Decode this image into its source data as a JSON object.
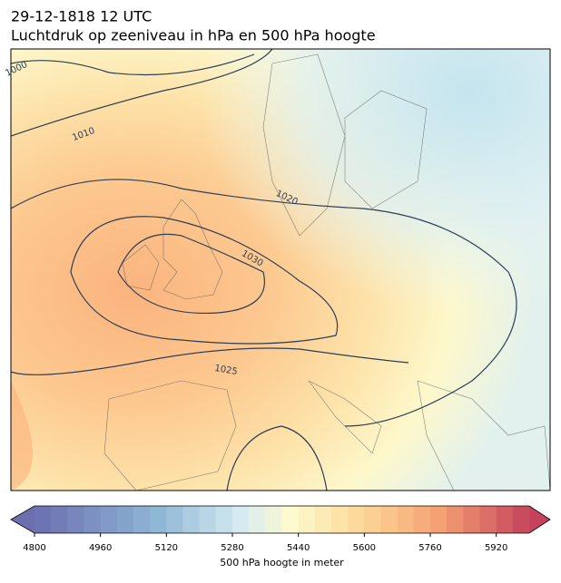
{
  "title": "29-12-1818 12 UTC",
  "subtitle": "Luchtdruk op zeeniveau in hPa en 500 hPa hoogte",
  "isobar_labels": [
    1000,
    1010,
    1020,
    1030,
    1025
  ],
  "colorbar": {
    "label": "500 hPa hoogte in meter",
    "lim": [
      4800,
      6000
    ],
    "ticks": [
      4800,
      4960,
      5120,
      5280,
      5440,
      5600,
      5760,
      5920
    ]
  }
}
